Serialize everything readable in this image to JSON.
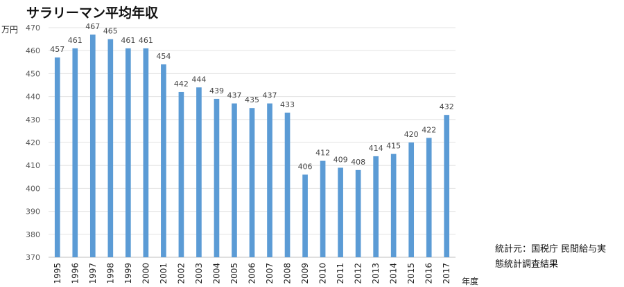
{
  "chart_data": {
    "type": "bar",
    "title": "サラリーマン平均年収",
    "ylabel": "万円",
    "xlabel": "年度",
    "ylim": [
      370,
      470
    ],
    "ytick_step": 10,
    "grid": true,
    "bar_color": "#5b9bd5",
    "categories": [
      "1995",
      "1996",
      "1997",
      "1998",
      "1999",
      "2000",
      "2001",
      "2002",
      "2003",
      "2004",
      "2005",
      "2006",
      "2007",
      "2008",
      "2009",
      "2010",
      "2011",
      "2012",
      "2013",
      "2014",
      "2015",
      "2016",
      "2017"
    ],
    "values": [
      457,
      461,
      467,
      465,
      461,
      461,
      454,
      442,
      444,
      439,
      437,
      435,
      437,
      433,
      406,
      412,
      409,
      408,
      414,
      415,
      420,
      422,
      432
    ]
  },
  "source_line1": "統計元：国税庁 民間給与実",
  "source_line2": "態統計調査結果"
}
